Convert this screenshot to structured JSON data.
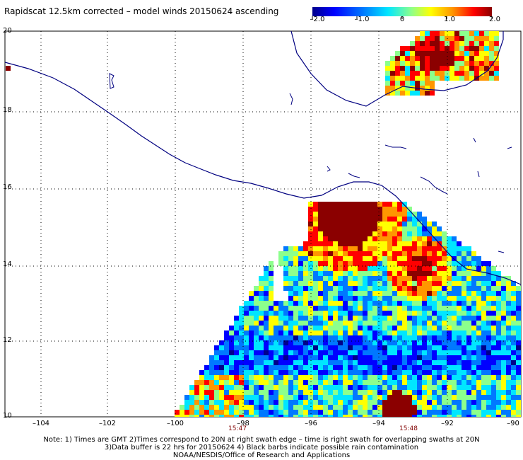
{
  "title": "Rapidscat 12.5km corrected – model winds 20150624 ascending",
  "colorbar": {
    "ticks": [
      "–2.0",
      "–1.0",
      "0",
      "1.0",
      "2.0"
    ],
    "min": -2.0,
    "max": 2.0,
    "colors": [
      "#00008c",
      "#0000ff",
      "#0078ff",
      "#00e6ff",
      "#8cff8c",
      "#ffff00",
      "#ff9600",
      "#ff0000",
      "#8b0000"
    ]
  },
  "axes": {
    "lat_labels": [
      "20",
      "18",
      "16",
      "14",
      "12",
      "10"
    ],
    "lon_labels": [
      "–104",
      "–102",
      "–100",
      "–98",
      "–96",
      "–94",
      "–92",
      "–90"
    ]
  },
  "times": [
    "15:47",
    "15:48"
  ],
  "notes": [
    "Note: 1) Times are GMT 2)Times correspond to 20N at right swath edge – time is right swath for overlapping swaths at 20N",
    "3)Data buffer is 22 hrs for 20150624 4) Black barbs indicate possible rain contamination",
    "NOAA/NESDIS/Office of Research and Applications"
  ]
}
